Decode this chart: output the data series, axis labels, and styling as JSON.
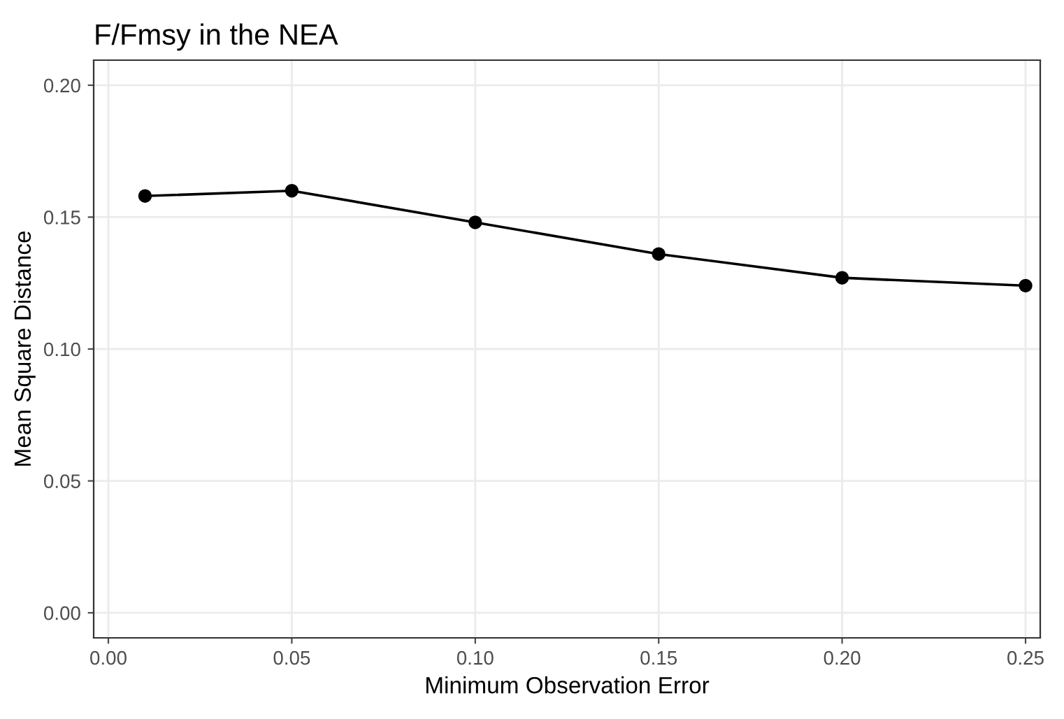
{
  "chart_data": {
    "type": "line",
    "title": "F/Fmsy in the NEA",
    "xlabel": "Minimum Observation Error",
    "ylabel": "Mean Square Distance",
    "x": [
      0.01,
      0.05,
      0.1,
      0.15,
      0.2,
      0.25
    ],
    "series": [
      {
        "color": "#000000",
        "values": [
          0.158,
          0.16,
          0.148,
          0.136,
          0.127,
          0.124
        ]
      }
    ],
    "xlim": [
      -0.004,
      0.254
    ],
    "xticks": [
      {
        "value": 0,
        "label": "0.00"
      },
      {
        "value": 0.05,
        "label": "0.05"
      },
      {
        "value": 0.1,
        "label": "0.10"
      },
      {
        "value": 0.15,
        "label": "0.15"
      },
      {
        "value": 0.2,
        "label": "0.20"
      },
      {
        "value": 0.25,
        "label": "0.25"
      }
    ],
    "ylim": [
      -0.0095,
      0.2095
    ],
    "yticks": [
      {
        "value": 0,
        "label": "0.00"
      },
      {
        "value": 0.05,
        "label": "0.05"
      },
      {
        "value": 0.1,
        "label": "0.10"
      },
      {
        "value": 0.15,
        "label": "0.15"
      },
      {
        "value": 0.2,
        "label": "0.20"
      }
    ],
    "grid": true,
    "marker": "circle",
    "line_style": "solid"
  }
}
